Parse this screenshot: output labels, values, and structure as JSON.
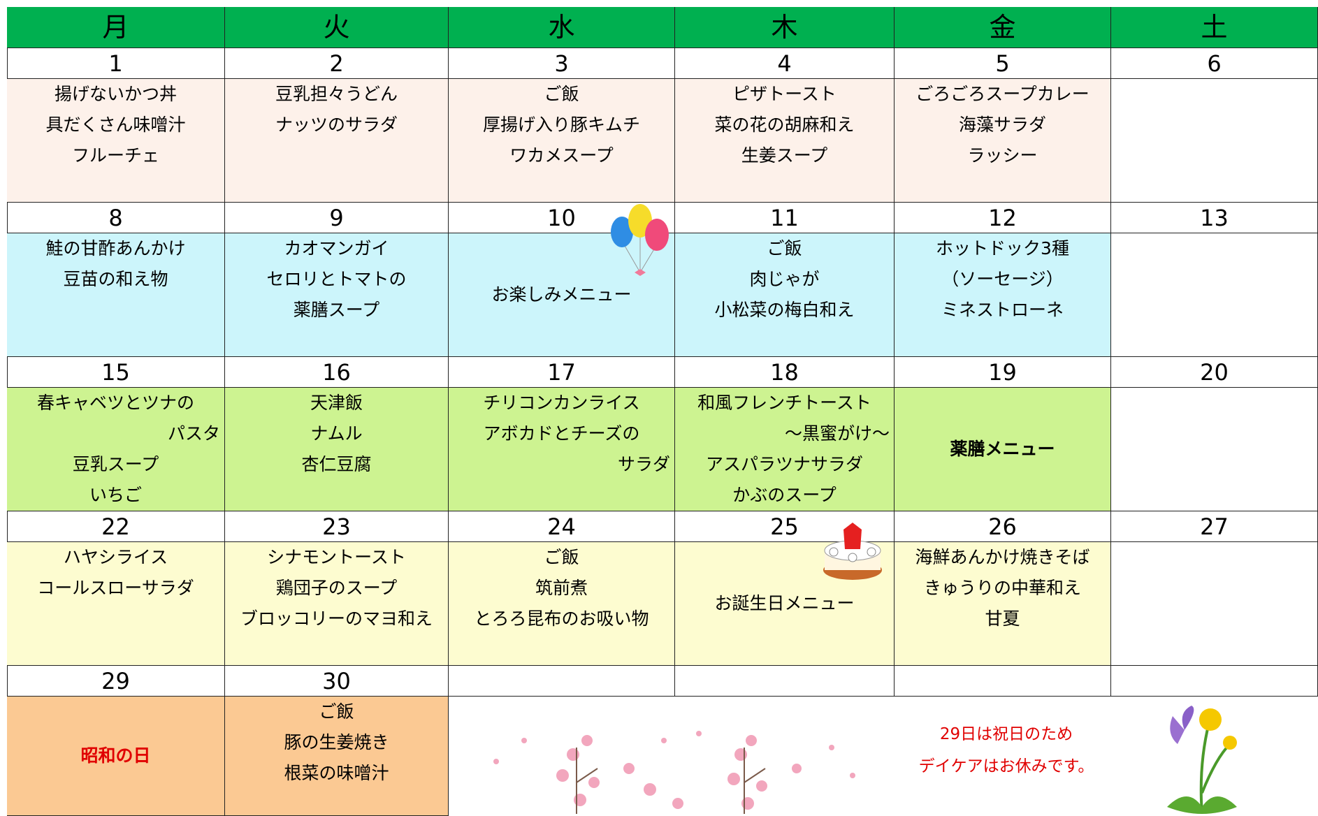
{
  "header": {
    "days": [
      "月",
      "火",
      "水",
      "木",
      "金",
      "土"
    ]
  },
  "weeks": [
    {
      "days": [
        {
          "date": "1",
          "menu": [
            "揚げないかつ丼",
            "具だくさん味噌汁",
            "フルーチェ"
          ]
        },
        {
          "date": "2",
          "menu": [
            "豆乳担々うどん",
            "ナッツのサラダ"
          ]
        },
        {
          "date": "3",
          "menu": [
            "ご飯",
            "厚揚げ入り豚キムチ",
            "ワカメスープ"
          ]
        },
        {
          "date": "4",
          "menu": [
            "ピザトースト",
            "菜の花の胡麻和え",
            "生姜スープ"
          ]
        },
        {
          "date": "5",
          "menu": [
            "ごろごろスープカレー",
            "海藻サラダ",
            "ラッシー"
          ]
        },
        {
          "date": "6"
        }
      ]
    },
    {
      "days": [
        {
          "date": "8",
          "menu": [
            "鮭の甘酢あんかけ",
            "豆苗の和え物"
          ]
        },
        {
          "date": "9",
          "menu": [
            "カオマンガイ",
            "セロリとトマトの",
            "薬膳スープ"
          ]
        },
        {
          "date": "10",
          "menu": [
            "お楽しみメニュー"
          ]
        },
        {
          "date": "11",
          "menu": [
            "ご飯",
            "肉じゃが",
            "小松菜の梅白和え"
          ]
        },
        {
          "date": "12",
          "menu": [
            "ホットドック3種",
            "（ソーセージ）",
            "ミネストローネ"
          ]
        },
        {
          "date": "13"
        }
      ]
    },
    {
      "days": [
        {
          "date": "15",
          "menu": [
            "春キャベツとツナの",
            "パスタ",
            "豆乳スープ",
            "いちご"
          ]
        },
        {
          "date": "16",
          "menu": [
            "天津飯",
            "ナムル",
            "杏仁豆腐"
          ]
        },
        {
          "date": "17",
          "menu": [
            "チリコンカンライス",
            "アボカドとチーズの",
            "サラダ"
          ]
        },
        {
          "date": "18",
          "menu": [
            "和風フレンチトースト",
            "～黒蜜がけ～",
            "アスパラツナサラダ",
            "かぶのスープ"
          ]
        },
        {
          "date": "19",
          "menu": [
            "薬膳メニュー"
          ]
        },
        {
          "date": "20"
        }
      ]
    },
    {
      "days": [
        {
          "date": "22",
          "menu": [
            "ハヤシライス",
            "コールスローサラダ"
          ]
        },
        {
          "date": "23",
          "menu": [
            "シナモントースト",
            "鶏団子のスープ",
            "ブロッコリーのマヨ和え"
          ]
        },
        {
          "date": "24",
          "menu": [
            "ご飯",
            "筑前煮",
            "とろろ昆布のお吸い物"
          ]
        },
        {
          "date": "25",
          "menu": [
            "お誕生日メニュー"
          ]
        },
        {
          "date": "26",
          "menu": [
            "海鮮あんかけ焼きそば",
            "きゅうりの中華和え",
            "甘夏"
          ]
        },
        {
          "date": "27"
        }
      ]
    },
    {
      "days": [
        {
          "date": "29",
          "menu": [
            "昭和の日"
          ]
        },
        {
          "date": "30",
          "menu": [
            "ご飯",
            "豚の生姜焼き",
            "根菜の味噌汁"
          ]
        }
      ]
    }
  ],
  "note": [
    "29日は祝日のため",
    "デイケアはお休みです。"
  ]
}
